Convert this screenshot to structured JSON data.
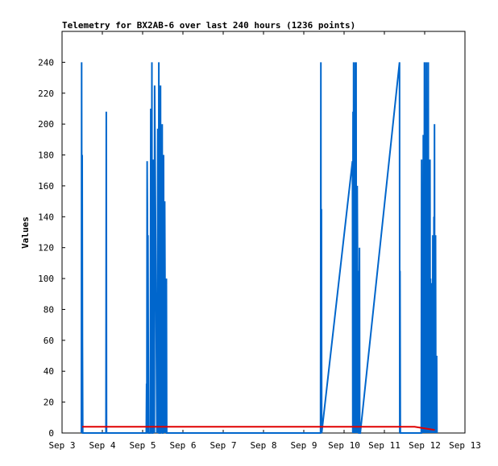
{
  "chart_data": {
    "type": "line",
    "title": "Telemetry for BX2AB-6 over last 240 hours (1236 points)",
    "xlabel": "",
    "ylabel": "Values",
    "xlim": [
      "2023-09-03 00:00",
      "2023-09-13 00:00"
    ],
    "ylim": [
      0,
      260
    ],
    "x_ticks": [
      "Sep 3",
      "Sep 4",
      "Sep 5",
      "Sep 6",
      "Sep 7",
      "Sep 8",
      "Sep 9",
      "Sep 10",
      "Sep 11",
      "Sep 12",
      "Sep 13"
    ],
    "y_ticks": [
      0,
      20,
      40,
      60,
      80,
      100,
      120,
      140,
      160,
      180,
      200,
      220,
      240
    ],
    "grid": false,
    "legend": "none",
    "colors": {
      "series_primary": "#0066cc",
      "series_secondary": "#e00000"
    },
    "series": [
      {
        "x": [
          "2023-09-03 11:30",
          "2023-09-03 11:40",
          "2023-09-03 11:50",
          "2023-09-03 12:00",
          "2023-09-03 12:10",
          "2023-09-03 12:20",
          "2023-09-04 02:10",
          "2023-09-04 02:20",
          "2023-09-04 02:30",
          "2023-09-05 02:10",
          "2023-09-05 02:20",
          "2023-09-05 02:30",
          "2023-09-05 02:40",
          "2023-09-05 02:50",
          "2023-09-05 03:00",
          "2023-09-05 03:10",
          "2023-09-05 03:20",
          "2023-09-05 03:30",
          "2023-09-05 04:30",
          "2023-09-05 04:40",
          "2023-09-05 04:50",
          "2023-09-05 05:00",
          "2023-09-05 05:10",
          "2023-09-05 05:20",
          "2023-09-05 05:30",
          "2023-09-05 05:40",
          "2023-09-05 06:00",
          "2023-09-05 06:10",
          "2023-09-05 06:20",
          "2023-09-05 06:30",
          "2023-09-05 06:40",
          "2023-09-05 06:50",
          "2023-09-05 07:00",
          "2023-09-05 07:10",
          "2023-09-05 08:30",
          "2023-09-05 08:40",
          "2023-09-05 08:50",
          "2023-09-05 09:00",
          "2023-09-05 09:10",
          "2023-09-05 09:20",
          "2023-09-05 09:30",
          "2023-09-05 09:40",
          "2023-09-05 09:50",
          "2023-09-05 10:30",
          "2023-09-05 10:40",
          "2023-09-05 10:50",
          "2023-09-05 11:00",
          "2023-09-05 11:10",
          "2023-09-05 11:20",
          "2023-09-05 11:30",
          "2023-09-05 11:40",
          "2023-09-05 11:50",
          "2023-09-05 12:00",
          "2023-09-05 12:10",
          "2023-09-05 12:20",
          "2023-09-05 12:30",
          "2023-09-05 12:40",
          "2023-09-05 12:50",
          "2023-09-05 13:00",
          "2023-09-05 13:10",
          "2023-09-05 13:40",
          "2023-09-05 13:50",
          "2023-09-05 14:00",
          "2023-09-05 14:10",
          "2023-09-05 14:20",
          "2023-09-09 10:00",
          "2023-09-09 10:10",
          "2023-09-09 10:20",
          "2023-09-09 10:30",
          "2023-09-09 10:40",
          "2023-09-10 05:00",
          "2023-09-10 05:10",
          "2023-09-10 05:20",
          "2023-09-10 05:30",
          "2023-09-10 05:40",
          "2023-09-10 05:50",
          "2023-09-10 06:00",
          "2023-09-10 06:10",
          "2023-09-10 06:20",
          "2023-09-10 06:30",
          "2023-09-10 06:40",
          "2023-09-10 07:00",
          "2023-09-10 07:10",
          "2023-09-10 07:20",
          "2023-09-10 07:30",
          "2023-09-10 07:40",
          "2023-09-10 07:50",
          "2023-09-10 08:30",
          "2023-09-10 08:40",
          "2023-09-10 08:50",
          "2023-09-10 09:00",
          "2023-09-10 09:10",
          "2023-09-10 09:20",
          "2023-09-10 09:30",
          "2023-09-10 09:40",
          "2023-09-11 09:00",
          "2023-09-11 09:10",
          "2023-09-11 09:20",
          "2023-09-11 09:30",
          "2023-09-11 22:00",
          "2023-09-11 22:10",
          "2023-09-11 22:20",
          "2023-09-11 22:30",
          "2023-09-11 22:40",
          "2023-09-11 22:50",
          "2023-09-11 23:00",
          "2023-09-11 23:10",
          "2023-09-11 23:20",
          "2023-09-11 23:30",
          "2023-09-11 23:40",
          "2023-09-11 23:50",
          "2023-09-12 00:00",
          "2023-09-12 00:10",
          "2023-09-12 00:20",
          "2023-09-12 00:30",
          "2023-09-12 00:40",
          "2023-09-12 00:50",
          "2023-09-12 01:00",
          "2023-09-12 01:10",
          "2023-09-12 01:20",
          "2023-09-12 01:30",
          "2023-09-12 01:40",
          "2023-09-12 01:50",
          "2023-09-12 02:00",
          "2023-09-12 02:10",
          "2023-09-12 02:20",
          "2023-09-12 02:30",
          "2023-09-12 02:40",
          "2023-09-12 02:50",
          "2023-09-12 03:00",
          "2023-09-12 03:10",
          "2023-09-12 03:20",
          "2023-09-12 03:30",
          "2023-09-12 03:40",
          "2023-09-12 03:50",
          "2023-09-12 04:00",
          "2023-09-12 04:10",
          "2023-09-12 04:20",
          "2023-09-12 04:30",
          "2023-09-12 04:40",
          "2023-09-12 04:50",
          "2023-09-12 05:00",
          "2023-09-12 05:10",
          "2023-09-12 05:20",
          "2023-09-12 05:30",
          "2023-09-12 05:40",
          "2023-09-12 05:50",
          "2023-09-12 06:00",
          "2023-09-12 06:10",
          "2023-09-12 06:20",
          "2023-09-12 06:30",
          "2023-09-12 06:40",
          "2023-09-12 06:50",
          "2023-09-12 07:00",
          "2023-09-12 07:10",
          "2023-09-12 07:20"
        ],
        "values": [
          0,
          240,
          0,
          180,
          60,
          0,
          0,
          208,
          0,
          0,
          32,
          0,
          176,
          145,
          0,
          128,
          74,
          0,
          0,
          60,
          210,
          0,
          160,
          0,
          240,
          0,
          0,
          150,
          0,
          177,
          0,
          120,
          0,
          225,
          0,
          84,
          0,
          197,
          0,
          142,
          0,
          240,
          0,
          0,
          225,
          0,
          140,
          0,
          60,
          0,
          200,
          0,
          0,
          120,
          0,
          180,
          0,
          90,
          0,
          150,
          0,
          80,
          0,
          100,
          0,
          0,
          240,
          0,
          145,
          0,
          176,
          0,
          208,
          0,
          240,
          0,
          145,
          0,
          36,
          0,
          240,
          0,
          240,
          0,
          96,
          0,
          160,
          0,
          105,
          0,
          0,
          120,
          0,
          0,
          0,
          240,
          0,
          105,
          0,
          0,
          177,
          0,
          100,
          0,
          160,
          0,
          193,
          0,
          140,
          0,
          240,
          0,
          240,
          0,
          190,
          0,
          40,
          0,
          240,
          0,
          120,
          0,
          80,
          0,
          240,
          0,
          160,
          0,
          140,
          0,
          177,
          0,
          100,
          0,
          70,
          0,
          97,
          0,
          20,
          0,
          128,
          0,
          96,
          0,
          140,
          0,
          200,
          0,
          97,
          0,
          128,
          0,
          30,
          0,
          50,
          0
        ]
      },
      {
        "x": [
          "2023-09-03 12:00",
          "2023-09-11 12:00",
          "2023-09-11 18:00",
          "2023-09-12 00:00",
          "2023-09-12 06:00"
        ],
        "values": [
          4,
          4,
          4,
          3,
          2
        ]
      }
    ]
  }
}
